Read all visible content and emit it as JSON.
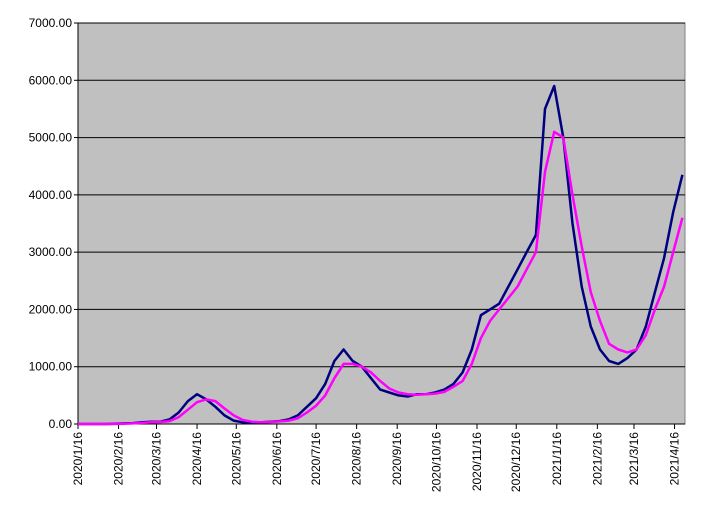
{
  "chart_data": {
    "type": "line",
    "x": [
      "2020/1/16",
      "2020/1/23",
      "2020/1/30",
      "2020/2/6",
      "2020/2/13",
      "2020/2/20",
      "2020/2/27",
      "2020/3/5",
      "2020/3/12",
      "2020/3/19",
      "2020/3/26",
      "2020/4/2",
      "2020/4/9",
      "2020/4/16",
      "2020/4/23",
      "2020/4/30",
      "2020/5/7",
      "2020/5/14",
      "2020/5/21",
      "2020/5/28",
      "2020/6/4",
      "2020/6/11",
      "2020/6/18",
      "2020/6/25",
      "2020/7/2",
      "2020/7/9",
      "2020/7/16",
      "2020/7/23",
      "2020/7/30",
      "2020/8/6",
      "2020/8/13",
      "2020/8/20",
      "2020/8/27",
      "2020/9/3",
      "2020/9/10",
      "2020/9/17",
      "2020/9/24",
      "2020/10/1",
      "2020/10/8",
      "2020/10/15",
      "2020/10/22",
      "2020/10/29",
      "2020/11/5",
      "2020/11/12",
      "2020/11/19",
      "2020/11/26",
      "2020/12/3",
      "2020/12/10",
      "2020/12/17",
      "2020/12/24",
      "2020/12/31",
      "2021/1/7",
      "2021/1/14",
      "2021/1/21",
      "2021/1/28",
      "2021/2/4",
      "2021/2/11",
      "2021/2/18",
      "2021/2/25",
      "2021/3/4",
      "2021/3/11",
      "2021/3/18",
      "2021/3/25",
      "2021/4/1",
      "2021/4/8",
      "2021/4/15",
      "2021/4/22"
    ],
    "series": [
      {
        "color": "#000080",
        "values": [
          0,
          0,
          0,
          0,
          5,
          10,
          15,
          30,
          40,
          40,
          80,
          200,
          400,
          520,
          430,
          300,
          150,
          60,
          30,
          20,
          30,
          40,
          50,
          80,
          150,
          300,
          450,
          700,
          1100,
          1300,
          1100,
          1000,
          800,
          600,
          550,
          500,
          480,
          520,
          520,
          550,
          600,
          700,
          900,
          1300,
          1900,
          2000,
          2100,
          2400,
          2700,
          3000,
          3300,
          5500,
          5900,
          5000,
          3500,
          2400,
          1700,
          1300,
          1100,
          1050,
          1150,
          1300,
          1700,
          2300,
          2900,
          3700,
          4350
        ]
      },
      {
        "color": "#ff00ff",
        "values": [
          0,
          0,
          0,
          0,
          0,
          5,
          10,
          20,
          30,
          35,
          50,
          120,
          250,
          380,
          430,
          400,
          270,
          150,
          70,
          40,
          30,
          35,
          45,
          60,
          100,
          200,
          320,
          500,
          800,
          1050,
          1050,
          1000,
          900,
          750,
          620,
          550,
          520,
          510,
          520,
          530,
          560,
          650,
          750,
          1050,
          1500,
          1800,
          2000,
          2200,
          2400,
          2700,
          3000,
          4400,
          5100,
          5000,
          4000,
          3100,
          2300,
          1800,
          1400,
          1300,
          1250,
          1300,
          1550,
          2000,
          2400,
          3000,
          3600
        ]
      }
    ],
    "xlim": [
      "2020/1/16",
      "2021/4/24"
    ],
    "xticks": [
      "2020/1/16",
      "2020/2/16",
      "2020/3/16",
      "2020/4/16",
      "2020/5/16",
      "2020/6/16",
      "2020/7/16",
      "2020/8/16",
      "2020/9/16",
      "2020/10/16",
      "2020/11/16",
      "2020/12/16",
      "2021/1/16",
      "2021/2/16",
      "2021/3/16",
      "2021/4/16"
    ],
    "ylim": [
      0,
      7000
    ],
    "yticks": [
      {
        "value": 0,
        "label": "0.00"
      },
      {
        "value": 1000,
        "label": "1000.00"
      },
      {
        "value": 2000,
        "label": "2000.00"
      },
      {
        "value": 3000,
        "label": "3000.00"
      },
      {
        "value": 4000,
        "label": "4000.00"
      },
      {
        "value": 5000,
        "label": "5000.00"
      },
      {
        "value": 6000,
        "label": "6000.00"
      },
      {
        "value": 7000,
        "label": "7000.00"
      }
    ],
    "grid": true
  }
}
